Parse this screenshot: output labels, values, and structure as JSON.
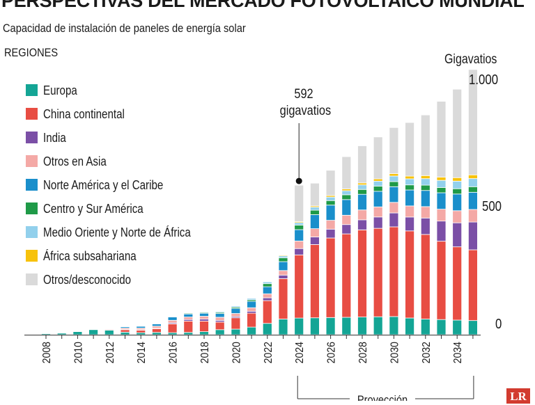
{
  "title": "PERSPECTIVAS DEL MERCADO FOTOVOLTAICO MUNDIAL",
  "subtitle": "Capacidad de instalación de paneles de energía solar",
  "legend_title": "REGIONES",
  "units_label": "Gigavatios",
  "annotation": {
    "value": "592",
    "unit": "gigavatios"
  },
  "projection_label": "Proyección",
  "logo_text": "LR",
  "chart_data": {
    "type": "bar",
    "stacked": true,
    "x": [
      2008,
      2009,
      2010,
      2011,
      2012,
      2013,
      2014,
      2015,
      2016,
      2017,
      2018,
      2019,
      2020,
      2021,
      2022,
      2023,
      2024,
      2025,
      2026,
      2027,
      2028,
      2029,
      2030,
      2031,
      2032,
      2033,
      2034,
      2035
    ],
    "x_tick_labels": [
      "2008",
      "2010",
      "2012",
      "2014",
      "2016",
      "2018",
      "2020",
      "2022",
      "2024",
      "2026",
      "2028",
      "2030",
      "2032",
      "2034"
    ],
    "y_tick_labels": [
      "0",
      "500",
      "1.000"
    ],
    "y_ticks": [
      0,
      500,
      1000
    ],
    "ylim": [
      0,
      1000
    ],
    "annotated_year": 2024,
    "annotated_value": 592,
    "projection_start": 2024,
    "projection_end": 2035,
    "series": [
      {
        "name": "Europa",
        "color": "#14a595",
        "values": [
          4,
          6,
          12,
          20,
          18,
          10,
          8,
          9,
          8,
          9,
          12,
          20,
          22,
          30,
          45,
          62,
          66,
          67,
          68,
          69,
          70,
          71,
          72,
          66,
          62,
          60,
          58,
          56
        ]
      },
      {
        "name": "China continental",
        "color": "#e84d43",
        "values": [
          0,
          0,
          0,
          2,
          3,
          10,
          10,
          15,
          35,
          45,
          42,
          30,
          45,
          55,
          90,
          160,
          250,
          290,
          315,
          330,
          345,
          350,
          355,
          345,
          335,
          310,
          290,
          280
        ]
      },
      {
        "name": "India",
        "color": "#7b4fa6",
        "values": [
          0,
          0,
          0,
          0,
          0,
          1,
          2,
          2,
          4,
          6,
          8,
          7,
          5,
          8,
          11,
          14,
          25,
          30,
          35,
          37,
          40,
          45,
          55,
          55,
          65,
          80,
          95,
          110
        ]
      },
      {
        "name": "Otros en Asia",
        "color": "#f4a9a6",
        "values": [
          0,
          0,
          0,
          0,
          2,
          5,
          6,
          8,
          10,
          10,
          11,
          12,
          12,
          14,
          16,
          18,
          30,
          33,
          35,
          37,
          39,
          40,
          42,
          44,
          45,
          47,
          48,
          50
        ]
      },
      {
        "name": "Norte América y el Caribe",
        "color": "#1a8fcb",
        "values": [
          0,
          0,
          0,
          1,
          2,
          5,
          7,
          9,
          13,
          12,
          12,
          15,
          20,
          25,
          28,
          35,
          45,
          55,
          60,
          62,
          62,
          62,
          62,
          63,
          64,
          65,
          66,
          68
        ]
      },
      {
        "name": "Centro y Sur América",
        "color": "#1f9a48",
        "values": [
          0,
          0,
          0,
          0,
          0,
          0,
          0,
          1,
          2,
          3,
          3,
          4,
          5,
          6,
          12,
          15,
          18,
          18,
          18,
          19,
          19,
          20,
          20,
          20,
          21,
          21,
          21,
          22
        ]
      },
      {
        "name": "Medio Oriente y Norte de África",
        "color": "#92d0ec",
        "values": [
          0,
          0,
          0,
          0,
          0,
          0,
          0,
          1,
          1,
          2,
          3,
          4,
          5,
          6,
          7,
          8,
          10,
          12,
          14,
          16,
          18,
          20,
          22,
          24,
          26,
          28,
          30,
          32
        ]
      },
      {
        "name": "África subsahariana",
        "color": "#f7c20c",
        "values": [
          0,
          0,
          0,
          0,
          0,
          0,
          0,
          0,
          1,
          1,
          1,
          1,
          1,
          2,
          2,
          3,
          4,
          5,
          6,
          7,
          8,
          9,
          10,
          11,
          12,
          13,
          14,
          15
        ]
      },
      {
        "name": "Otros/desconocido",
        "color": "#dadada",
        "values": [
          0,
          0,
          0,
          0,
          0,
          0,
          0,
          0,
          0,
          0,
          0,
          0,
          0,
          0,
          0,
          0,
          144,
          90,
          100,
          128,
          147,
          166,
          182,
          212,
          240,
          300,
          350,
          417
        ]
      }
    ]
  }
}
